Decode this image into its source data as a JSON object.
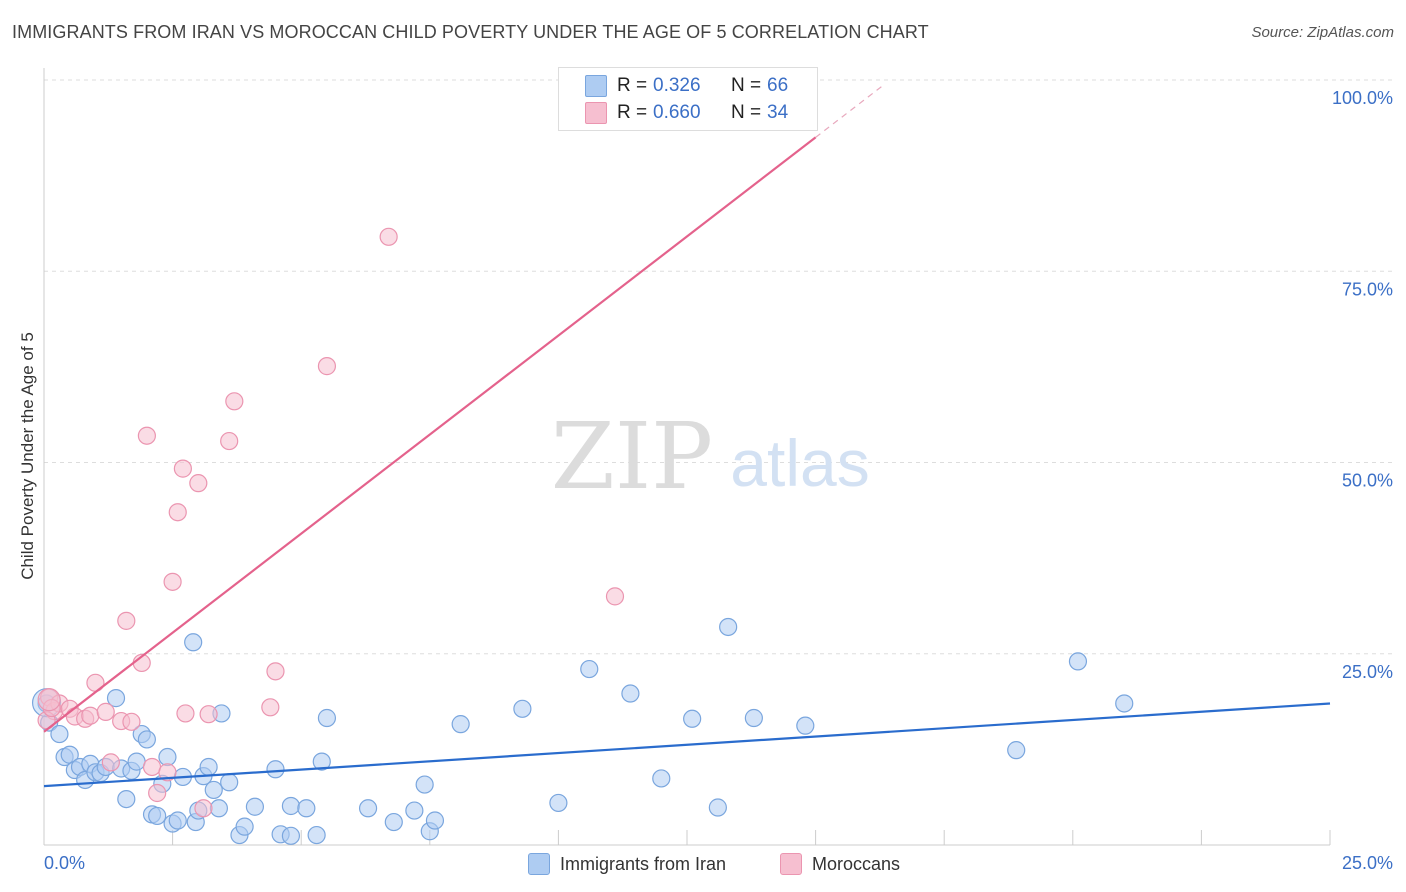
{
  "title": "IMMIGRANTS FROM IRAN VS MOROCCAN CHILD POVERTY UNDER THE AGE OF 5 CORRELATION CHART",
  "source": "Source: ZipAtlas.com",
  "watermark": {
    "zip": "ZIP",
    "atlas": "atlas"
  },
  "legend": {
    "series1": {
      "r_label": "R =",
      "r_value": "0.326",
      "n_label": "N =",
      "n_value": "66"
    },
    "series2": {
      "r_label": "R =",
      "r_value": "0.660",
      "n_label": "N =",
      "n_value": "34"
    }
  },
  "bottom_legend": [
    "Immigrants from Iran",
    "Moroccans"
  ],
  "colors": {
    "blue_fill": "#aeccf2",
    "blue_stroke": "#7aa6de",
    "blue_line": "#2a6ccd",
    "pink_fill": "#f6bfd0",
    "pink_stroke": "#eb95b0",
    "pink_line": "#e4628c",
    "axis_text": "#3b6fc6"
  },
  "chart_data": {
    "type": "scatter",
    "title": "IMMIGRANTS FROM IRAN VS MOROCCAN CHILD POVERTY UNDER THE AGE OF 5 CORRELATION CHART",
    "xlabel": "",
    "ylabel": "Child Poverty Under the Age of 5",
    "xlim": [
      0,
      25
    ],
    "ylim": [
      0,
      100
    ],
    "x_tick_labels": [
      "0.0%",
      "25.0%"
    ],
    "y_tick_labels": [
      "100.0%",
      "75.0%",
      "50.0%",
      "25.0%"
    ],
    "y_tick_values": [
      100,
      75,
      50,
      25
    ],
    "grid": true,
    "series": [
      {
        "name": "Immigrants from Iran",
        "r": 0.326,
        "n": 66,
        "trend": {
          "x": [
            0,
            25
          ],
          "y": [
            7.7,
            18.5
          ]
        },
        "points": [
          [
            0.05,
            18.5
          ],
          [
            0.1,
            16.0
          ],
          [
            0.3,
            14.5
          ],
          [
            0.4,
            11.5
          ],
          [
            0.5,
            11.8
          ],
          [
            0.6,
            9.8
          ],
          [
            0.7,
            10.2
          ],
          [
            0.8,
            8.5
          ],
          [
            0.9,
            10.6
          ],
          [
            1.0,
            9.5
          ],
          [
            1.1,
            9.4
          ],
          [
            1.2,
            10.2
          ],
          [
            1.4,
            19.2
          ],
          [
            1.5,
            10.0
          ],
          [
            1.6,
            6.0
          ],
          [
            1.7,
            9.7
          ],
          [
            1.8,
            10.9
          ],
          [
            1.9,
            14.5
          ],
          [
            2.0,
            13.8
          ],
          [
            2.1,
            4.0
          ],
          [
            2.2,
            3.8
          ],
          [
            2.3,
            8.0
          ],
          [
            2.4,
            11.5
          ],
          [
            2.5,
            2.8
          ],
          [
            2.6,
            3.2
          ],
          [
            2.7,
            8.9
          ],
          [
            2.9,
            26.5
          ],
          [
            2.95,
            3.0
          ],
          [
            3.0,
            4.5
          ],
          [
            3.1,
            9.0
          ],
          [
            3.2,
            10.2
          ],
          [
            3.3,
            7.2
          ],
          [
            3.4,
            4.8
          ],
          [
            3.45,
            17.2
          ],
          [
            3.6,
            8.2
          ],
          [
            3.8,
            1.3
          ],
          [
            3.9,
            2.4
          ],
          [
            4.1,
            5.0
          ],
          [
            4.5,
            9.9
          ],
          [
            4.6,
            1.4
          ],
          [
            4.8,
            1.2
          ],
          [
            4.8,
            5.1
          ],
          [
            5.1,
            4.8
          ],
          [
            5.3,
            1.3
          ],
          [
            5.4,
            10.9
          ],
          [
            5.5,
            16.6
          ],
          [
            6.3,
            4.8
          ],
          [
            6.8,
            3.0
          ],
          [
            7.2,
            4.5
          ],
          [
            7.4,
            7.9
          ],
          [
            7.5,
            1.8
          ],
          [
            7.6,
            3.2
          ],
          [
            8.1,
            15.8
          ],
          [
            9.3,
            17.8
          ],
          [
            10.0,
            5.5
          ],
          [
            10.6,
            23.0
          ],
          [
            11.4,
            19.8
          ],
          [
            12.0,
            8.7
          ],
          [
            12.6,
            16.5
          ],
          [
            13.1,
            4.9
          ],
          [
            13.3,
            28.5
          ],
          [
            13.8,
            16.6
          ],
          [
            14.8,
            15.6
          ],
          [
            18.9,
            12.4
          ],
          [
            20.1,
            24.0
          ],
          [
            21.0,
            18.5
          ]
        ]
      },
      {
        "name": "Moroccans",
        "r": 0.66,
        "n": 34,
        "trend": {
          "x": [
            0,
            15
          ],
          "y": [
            14.8,
            92.5
          ]
        },
        "points": [
          [
            0.1,
            19.3
          ],
          [
            0.2,
            17.5
          ],
          [
            0.3,
            18.5
          ],
          [
            0.5,
            17.8
          ],
          [
            0.6,
            16.8
          ],
          [
            0.8,
            16.5
          ],
          [
            0.9,
            16.9
          ],
          [
            1.0,
            21.2
          ],
          [
            1.2,
            17.4
          ],
          [
            1.3,
            10.8
          ],
          [
            1.5,
            16.2
          ],
          [
            1.6,
            29.3
          ],
          [
            1.7,
            16.1
          ],
          [
            1.9,
            23.8
          ],
          [
            2.0,
            53.5
          ],
          [
            2.1,
            10.2
          ],
          [
            2.2,
            6.8
          ],
          [
            2.4,
            9.5
          ],
          [
            2.5,
            34.4
          ],
          [
            2.6,
            43.5
          ],
          [
            2.7,
            49.2
          ],
          [
            2.75,
            17.2
          ],
          [
            3.0,
            47.3
          ],
          [
            3.1,
            4.8
          ],
          [
            3.2,
            17.1
          ],
          [
            3.6,
            52.8
          ],
          [
            3.7,
            58.0
          ],
          [
            4.4,
            18.0
          ],
          [
            4.5,
            22.7
          ],
          [
            5.5,
            62.6
          ],
          [
            6.7,
            79.5
          ],
          [
            11.1,
            32.5
          ],
          [
            0.05,
            16.3
          ],
          [
            0.15,
            17.9
          ]
        ]
      }
    ]
  }
}
